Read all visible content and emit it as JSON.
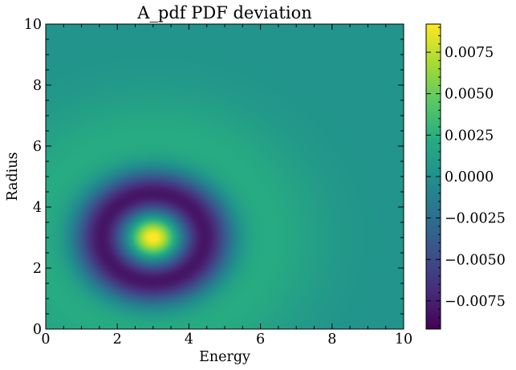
{
  "chart_data": {
    "type": "heatmap",
    "title": "A_pdf PDF deviation",
    "xlabel": "Energy",
    "ylabel": "Radius",
    "xlim": [
      0,
      10
    ],
    "ylim": [
      0,
      10
    ],
    "x_ticks": [
      0,
      2,
      4,
      6,
      8,
      10
    ],
    "x_tick_labels": [
      "0",
      "2",
      "4",
      "6",
      "8",
      "10"
    ],
    "y_ticks": [
      0,
      2,
      4,
      6,
      8,
      10
    ],
    "y_tick_labels": [
      "0",
      "2",
      "4",
      "6",
      "8",
      "10"
    ],
    "colormap": "viridis",
    "colorbar": {
      "range": [
        -0.0092,
        0.0092
      ],
      "ticks": [
        0.0075,
        0.005,
        0.0025,
        0.0,
        -0.0025,
        -0.005,
        -0.0075
      ],
      "tick_labels": [
        "0.0075",
        "0.0050",
        "0.0025",
        "0.0000",
        "−0.0025",
        "−0.0050",
        "−0.0075"
      ]
    },
    "field": {
      "description_free_params": true,
      "center": [
        3.0,
        3.0
      ],
      "peak_value": 0.0092,
      "peak_sigma": 0.42,
      "trough_value": -0.0092,
      "trough_radius": 1.45,
      "trough_sigma_inner": 0.48,
      "trough_sigma_outer": 0.55,
      "halo_value": 0.0019,
      "halo_radius": 3.1,
      "halo_sigma": 1.2,
      "background_value": 0.0003
    }
  }
}
